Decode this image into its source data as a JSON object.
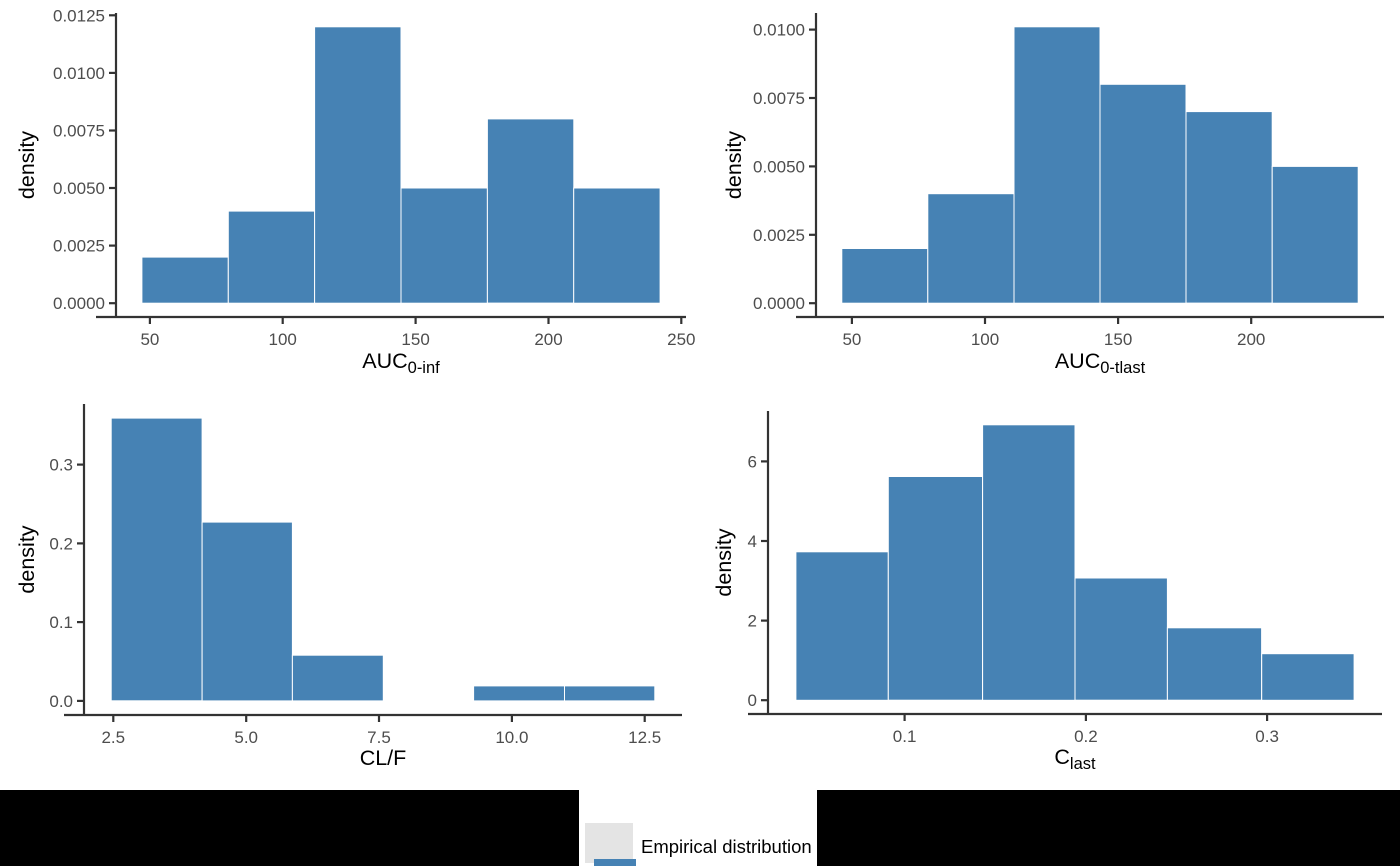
{
  "figure": {
    "background": "#FFFFFF",
    "bar_fill": "#4682B4",
    "bar_stroke": "#FFFFFF",
    "axis_line_color": "#333333",
    "tick_label_color": "#4D4D4D",
    "title_color": "#000000"
  },
  "legend": {
    "label": "Empirical distribution",
    "swatch_color": "#4682B4",
    "band_color": "#000000",
    "box_color": "#FFFFFF"
  },
  "chart_data": [
    {
      "type": "bar",
      "kind": "histogram",
      "name": "histogram-auc-0-inf",
      "title": "",
      "xlabel_base": "AUC",
      "xlabel_sub": "0-inf",
      "ylabel": "density",
      "bin_edges": [
        47.0,
        79.5,
        112.0,
        144.5,
        177.0,
        209.5,
        242.0
      ],
      "densities": [
        0.002,
        0.004,
        0.012,
        0.005,
        0.008,
        0.005
      ],
      "xticks": {
        "values": [
          50,
          100,
          150,
          200,
          250
        ],
        "labels": [
          "50",
          "100",
          "150",
          "200",
          "250"
        ]
      },
      "yticks": {
        "values": [
          0.0,
          0.0025,
          0.005,
          0.0075,
          0.01,
          0.0125
        ],
        "labels": [
          "0.0000",
          "0.0025",
          "0.0050",
          "0.0075",
          "0.0100",
          "0.0125"
        ]
      },
      "xlim": [
        37.25,
        251.75
      ],
      "ylim": [
        -0.0006,
        0.0126
      ],
      "grid": false
    },
    {
      "type": "bar",
      "kind": "histogram",
      "name": "histogram-auc-0-tlast",
      "title": "",
      "xlabel_base": "AUC",
      "xlabel_sub": "0-tlast",
      "ylabel": "density",
      "bin_edges": [
        46.2,
        78.5,
        110.9,
        143.2,
        175.5,
        207.9,
        240.2
      ],
      "densities": [
        0.002,
        0.004,
        0.0101,
        0.008,
        0.007,
        0.005
      ],
      "xticks": {
        "values": [
          50,
          100,
          150,
          200
        ],
        "labels": [
          "50",
          "100",
          "150",
          "200"
        ]
      },
      "yticks": {
        "values": [
          0.0,
          0.0025,
          0.005,
          0.0075,
          0.01
        ],
        "labels": [
          "0.0000",
          "0.0025",
          "0.0050",
          "0.0075",
          "0.0100"
        ]
      },
      "xlim": [
        36.5,
        249.9
      ],
      "ylim": [
        -0.000505,
        0.010605
      ],
      "grid": false
    },
    {
      "type": "bar",
      "kind": "histogram",
      "name": "histogram-cl-f",
      "title": "",
      "xlabel_base": "CL/F",
      "xlabel_sub": "",
      "ylabel": "density",
      "bin_edges": [
        2.46,
        4.17,
        5.87,
        7.58,
        9.28,
        10.99,
        12.69
      ],
      "densities": [
        0.359,
        0.227,
        0.058,
        0,
        0.019,
        0.019
      ],
      "xticks": {
        "values": [
          2.5,
          5.0,
          7.5,
          10.0,
          12.5
        ],
        "labels": [
          "2.5",
          "5.0",
          "7.5",
          "10.0",
          "12.5"
        ]
      },
      "yticks": {
        "values": [
          0.0,
          0.1,
          0.2,
          0.3
        ],
        "labels": [
          "0.0",
          "0.1",
          "0.2",
          "0.3"
        ]
      },
      "xlim": [
        1.9485,
        13.2015
      ],
      "ylim": [
        -0.01795,
        0.37695
      ],
      "grid": false
    },
    {
      "type": "bar",
      "kind": "histogram",
      "name": "histogram-c-last",
      "title": "",
      "xlabel_base": "C",
      "xlabel_sub": "last",
      "ylabel": "density",
      "bin_edges": [
        0.04,
        0.091,
        0.143,
        0.194,
        0.245,
        0.297,
        0.348
      ],
      "densities": [
        3.73,
        5.62,
        6.92,
        3.07,
        1.82,
        1.17
      ],
      "xticks": {
        "values": [
          0.1,
          0.2,
          0.3
        ],
        "labels": [
          "0.1",
          "0.2",
          "0.3"
        ]
      },
      "yticks": {
        "values": [
          0,
          2,
          4,
          6
        ],
        "labels": [
          "0",
          "2",
          "4",
          "6"
        ]
      },
      "xlim": [
        0.0246,
        0.3634
      ],
      "ylim": [
        -0.346,
        7.266
      ],
      "grid": false
    }
  ]
}
